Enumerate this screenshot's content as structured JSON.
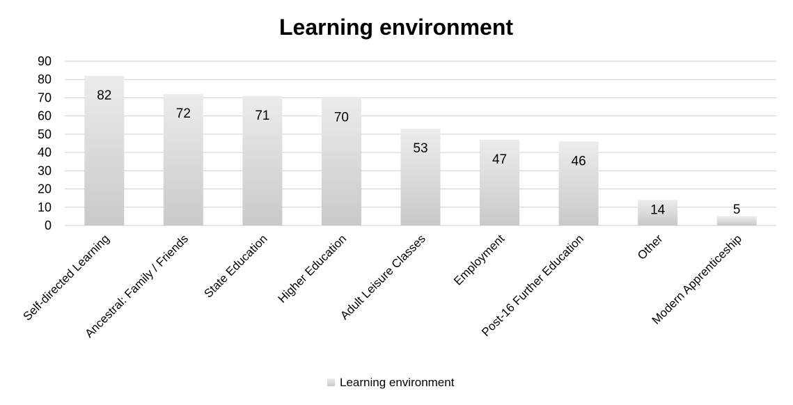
{
  "chart_data": {
    "type": "bar",
    "title": "Learning environment",
    "xlabel": "",
    "ylabel": "",
    "ylim": [
      0,
      90
    ],
    "yticks": [
      0,
      10,
      20,
      30,
      40,
      50,
      60,
      70,
      80,
      90
    ],
    "grid": true,
    "legend_position": "bottom",
    "categories": [
      "Self-directed Learning",
      "Ancestral: Family / Friends",
      "State Education",
      "Higher Education",
      "Adult Leisure Classes",
      "Employment",
      "Post-16 Further Education",
      "Other",
      "Modern Apprenticeship"
    ],
    "series": [
      {
        "name": "Learning environment",
        "values": [
          82,
          72,
          71,
          70,
          53,
          47,
          46,
          14,
          5
        ]
      }
    ],
    "data_labels": true
  },
  "colors": {
    "bar_top": "#ececec",
    "bar_bottom": "#c9c9c9",
    "gridline": "#d0d0d0",
    "text": "#000000"
  }
}
